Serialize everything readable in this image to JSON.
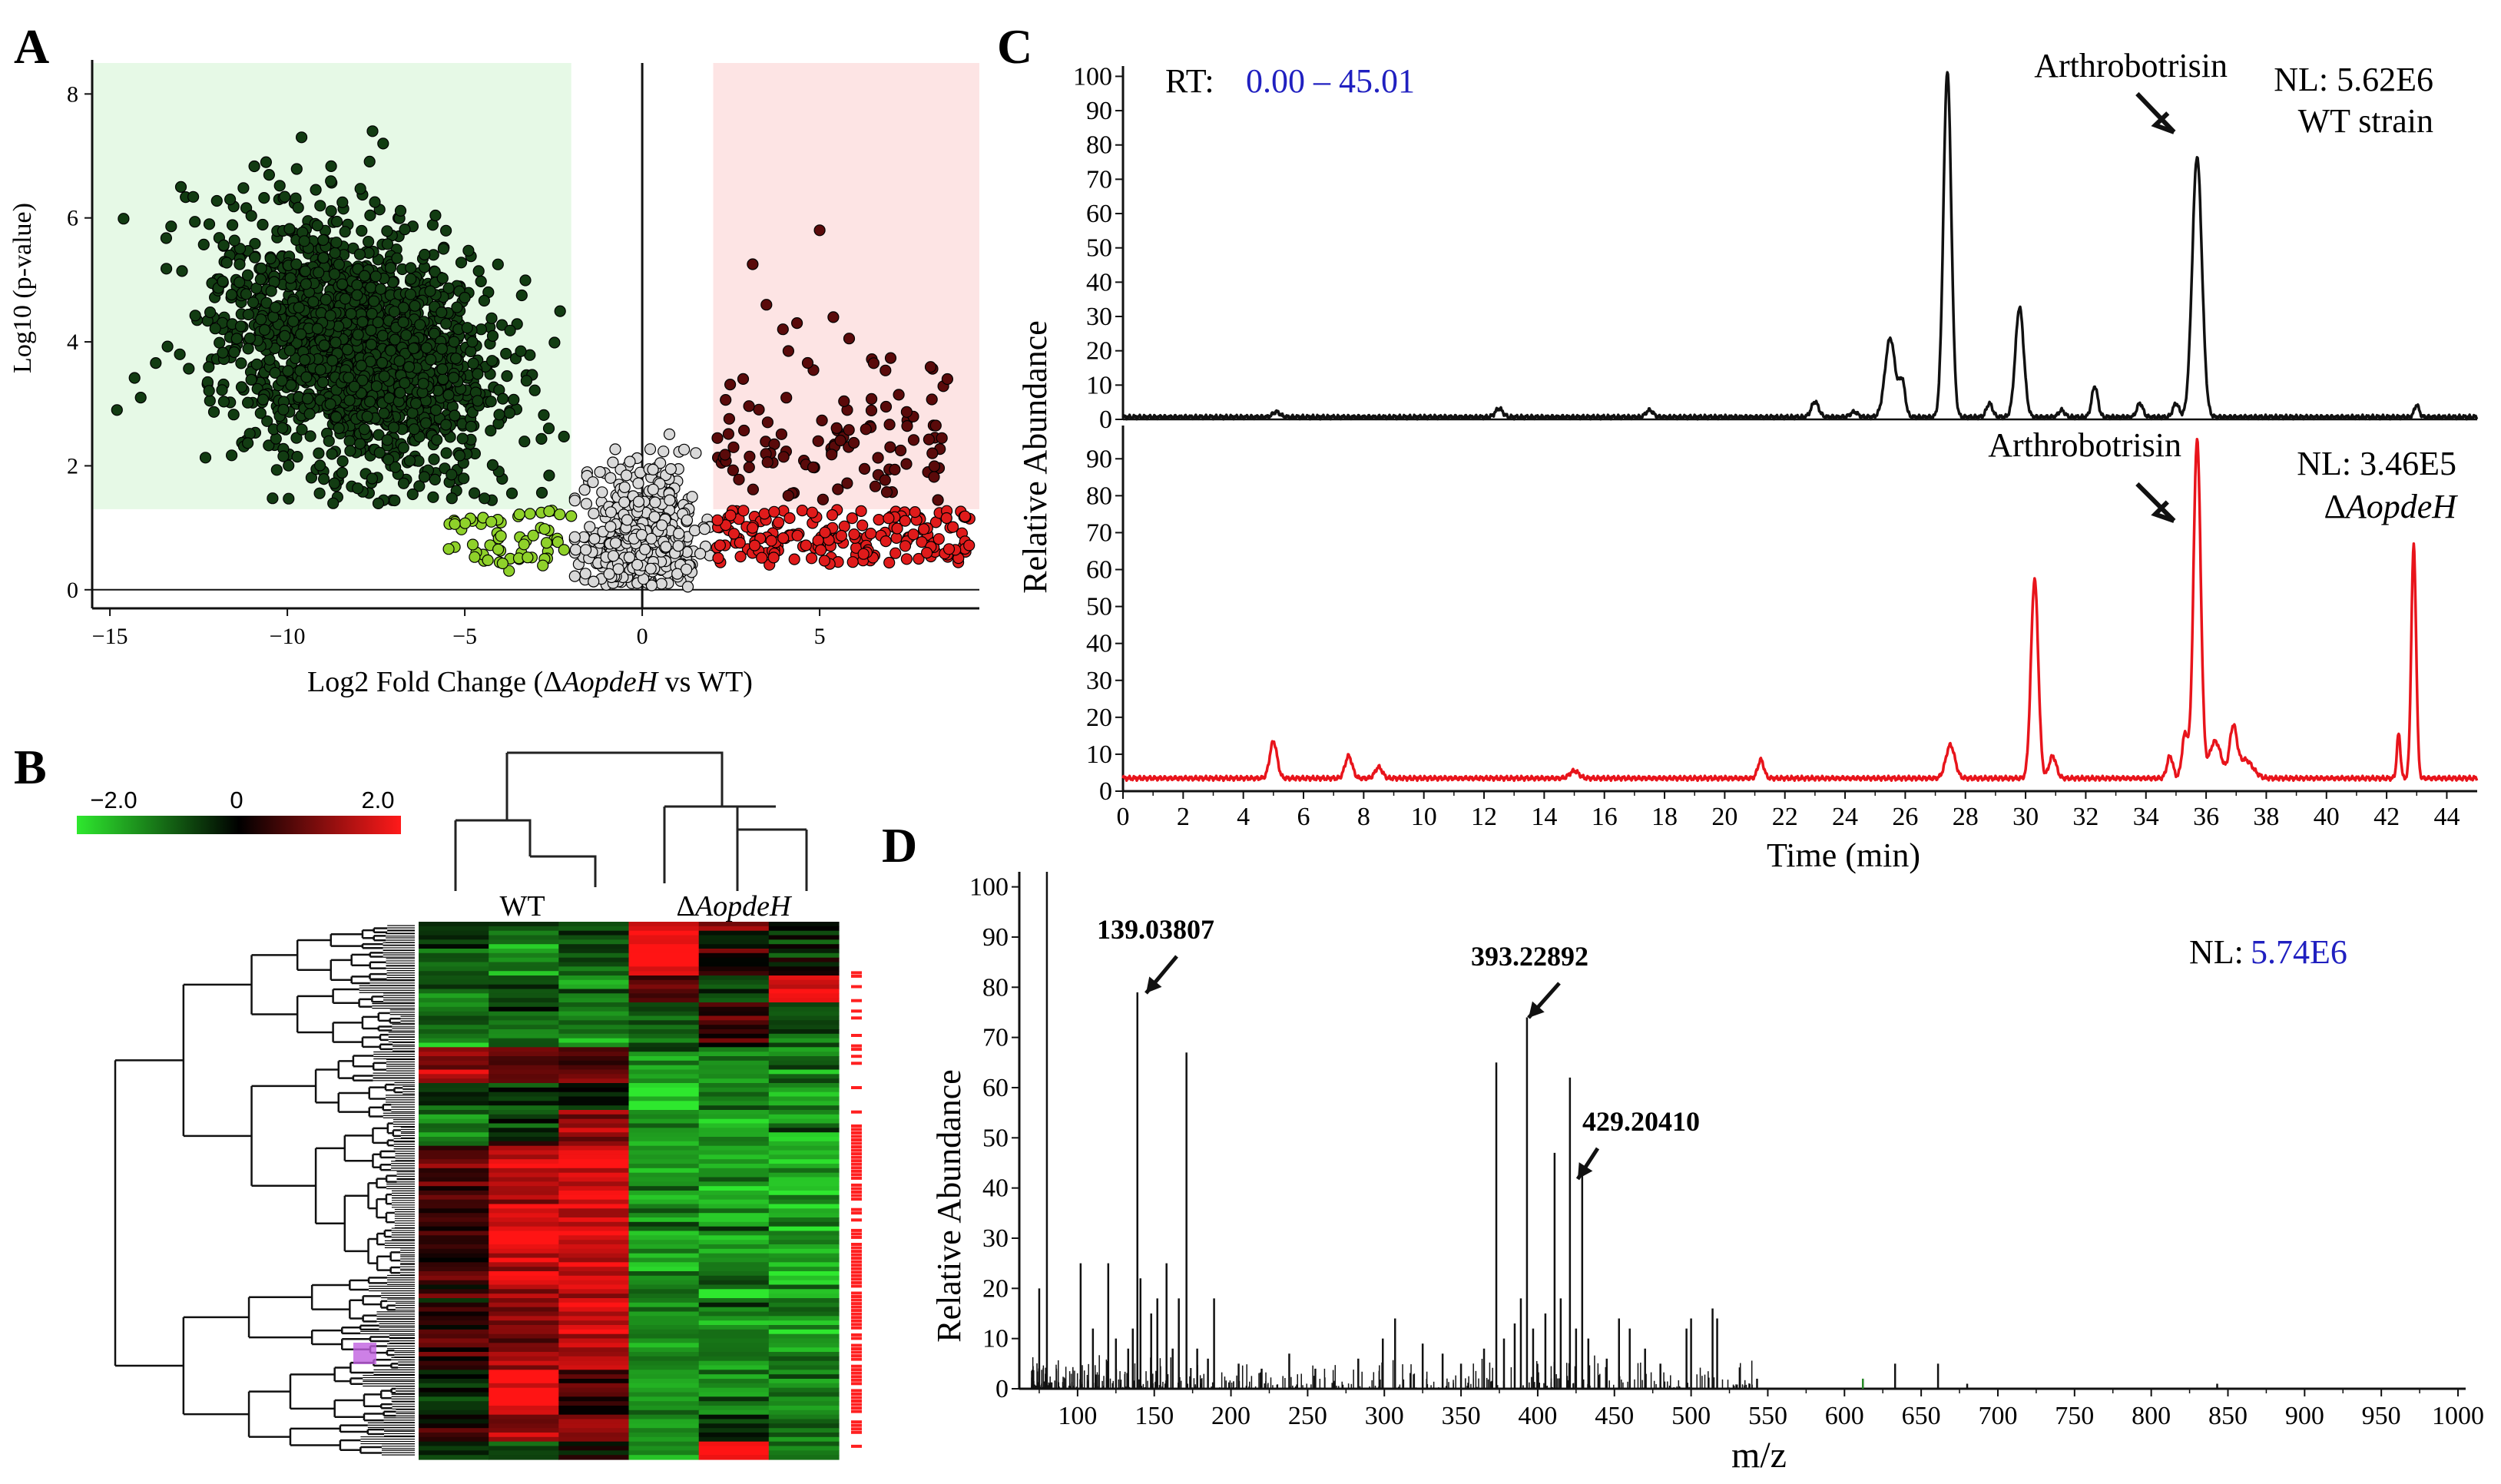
{
  "panel_labels": {
    "a": "A",
    "b": "B",
    "c": "C",
    "d": "D"
  },
  "chart_data": [
    {
      "id": "A",
      "type": "scatter",
      "title": "",
      "xlabel_prefix": "Log2 Fold Change (Δ",
      "xlabel_italic": "AopdeH",
      "xlabel_suffix": " vs WT)",
      "ylabel": "Log10 (p-value)",
      "xlim": [
        -15.5,
        9.5
      ],
      "ylim": [
        -0.3,
        8.5
      ],
      "x_ticks": [
        -15,
        -10,
        -5,
        0,
        5
      ],
      "y_ticks": [
        0,
        2,
        4,
        6,
        8
      ],
      "grid": false,
      "shaded_regions": [
        {
          "name": "down-regulated",
          "x": [
            -15.5,
            -2
          ],
          "y": [
            1.3,
            8.5
          ],
          "color": "#e6f9e6"
        },
        {
          "name": "up-regulated",
          "x": [
            2,
            9.5
          ],
          "y": [
            1.3,
            8.5
          ],
          "color": "#fde4e4"
        }
      ],
      "groups": [
        {
          "name": "significant-down",
          "color": "#123c12",
          "approx_count": 1800,
          "x_center": -8,
          "y_center": 3.8
        },
        {
          "name": "fold-down-not-significant",
          "color": "#8fd12a",
          "approx_count": 60
        },
        {
          "name": "not-changed",
          "color": "#d9d9d9",
          "approx_count": 600
        },
        {
          "name": "significant-up",
          "color": "#5a0a0a",
          "approx_count": 110
        },
        {
          "name": "fold-up-not-significant",
          "color": "#e01b1b",
          "approx_count": 180
        }
      ],
      "representative_points": [
        {
          "x": -14.8,
          "y": 2.9
        },
        {
          "x": -13.0,
          "y": 6.5
        },
        {
          "x": -12.2,
          "y": 5.9
        },
        {
          "x": -10.6,
          "y": 6.9
        },
        {
          "x": -9.6,
          "y": 7.3
        },
        {
          "x": -7.6,
          "y": 7.4
        },
        {
          "x": -7.3,
          "y": 7.2
        },
        {
          "x": -5.6,
          "y": 5.5
        },
        {
          "x": 3.5,
          "y": 4.6
        },
        {
          "x": 5.0,
          "y": 5.8
        },
        {
          "x": 8.6,
          "y": 3.4
        },
        {
          "x": 9.0,
          "y": 0.6
        }
      ]
    },
    {
      "id": "B",
      "type": "heatmap",
      "colorbar": {
        "min_label": "−2.0",
        "mid_label": "0",
        "max_label": "2.0",
        "colors": [
          "#2ee82e",
          "#000000",
          "#ff1a1a"
        ]
      },
      "column_groups": [
        {
          "label": "WT",
          "columns": 3
        },
        {
          "label_prefix": "Δ",
          "label_italic": "AopdeH",
          "columns": 3
        }
      ],
      "row_blocks": [
        {
          "rows": 2,
          "values": [
            -0.6,
            -0.6,
            -0.6,
            1.8,
            1.0,
            0.4
          ]
        },
        {
          "rows": 10,
          "values": [
            -0.8,
            -1.0,
            -0.7,
            2.0,
            0.2,
            -0.5
          ]
        },
        {
          "rows": 6,
          "values": [
            -1.0,
            -0.8,
            -1.0,
            0.6,
            -0.6,
            1.9
          ]
        },
        {
          "rows": 10,
          "values": [
            -0.9,
            -1.0,
            -1.0,
            -0.8,
            0.4,
            -0.5
          ]
        },
        {
          "rows": 8,
          "values": [
            1.2,
            0.8,
            0.5,
            -1.2,
            -1.0,
            -1.1
          ]
        },
        {
          "rows": 6,
          "values": [
            -0.5,
            -0.2,
            -0.4,
            -2.0,
            -0.9,
            -1.3
          ]
        },
        {
          "rows": 8,
          "values": [
            -1.0,
            -0.3,
            1.3,
            -1.3,
            -1.2,
            -1.3
          ]
        },
        {
          "rows": 30,
          "values": [
            0.5,
            1.6,
            1.8,
            -1.3,
            -1.3,
            -1.3
          ]
        },
        {
          "rows": 20,
          "values": [
            0.3,
            1.2,
            1.5,
            -1.2,
            -1.3,
            -1.3
          ]
        },
        {
          "rows": 10,
          "values": [
            -0.4,
            2.0,
            0.7,
            -1.2,
            -1.2,
            -1.2
          ]
        },
        {
          "rows": 6,
          "values": [
            0.4,
            1.0,
            1.2,
            -1.3,
            -0.4,
            -1.0
          ]
        },
        {
          "rows": 4,
          "values": [
            -0.6,
            -0.4,
            -0.5,
            -1.0,
            1.9,
            -1.2
          ]
        }
      ]
    },
    {
      "id": "C",
      "type": "line",
      "ylabel": "Relative Abundance",
      "xlabel": "Time (min)",
      "xlim": [
        0,
        45.01
      ],
      "x_ticks": [
        0,
        2,
        4,
        6,
        8,
        10,
        12,
        14,
        16,
        18,
        20,
        22,
        24,
        26,
        28,
        30,
        32,
        34,
        36,
        38,
        40,
        42,
        44
      ],
      "y_ticks_top": [
        0,
        10,
        20,
        30,
        40,
        50,
        60,
        70,
        80,
        90,
        100
      ],
      "y_ticks_bottom": [
        0,
        10,
        20,
        30,
        40,
        50,
        60,
        70,
        80,
        90
      ],
      "rt_label": "RT:",
      "rt_range": "0.00 – 45.01",
      "series": [
        {
          "name": "WT strain",
          "color": "#111111",
          "nl_label": "NL: 5.62E6",
          "strain_label": "WT strain",
          "annotation": "Arthrobotrisin",
          "annotation_time": 35.7,
          "baseline": 0.7,
          "peaks": [
            {
              "t": 5.1,
              "h": 1.5,
              "w": 0.12
            },
            {
              "t": 12.5,
              "h": 2.5,
              "w": 0.12
            },
            {
              "t": 17.5,
              "h": 2.0,
              "w": 0.12
            },
            {
              "t": 23.0,
              "h": 4.5,
              "w": 0.12
            },
            {
              "t": 24.3,
              "h": 1.5,
              "w": 0.12
            },
            {
              "t": 25.5,
              "h": 23.0,
              "w": 0.17
            },
            {
              "t": 25.9,
              "h": 10.0,
              "w": 0.1
            },
            {
              "t": 27.4,
              "h": 101.0,
              "w": 0.13
            },
            {
              "t": 28.8,
              "h": 4.0,
              "w": 0.1
            },
            {
              "t": 29.8,
              "h": 32.0,
              "w": 0.14
            },
            {
              "t": 31.2,
              "h": 2.0,
              "w": 0.1
            },
            {
              "t": 32.3,
              "h": 9.0,
              "w": 0.1
            },
            {
              "t": 33.8,
              "h": 4.0,
              "w": 0.1
            },
            {
              "t": 35.0,
              "h": 4.0,
              "w": 0.1
            },
            {
              "t": 35.7,
              "h": 76.0,
              "w": 0.16
            },
            {
              "t": 43.0,
              "h": 3.5,
              "w": 0.08
            }
          ]
        },
        {
          "name": "ΔAopdeH",
          "color": "#e8141b",
          "nl_label": "NL: 3.46E5",
          "strain_label_prefix": "Δ",
          "strain_label_italic": "AopdeH",
          "annotation": "Arthrobotrisin",
          "annotation_time": 35.7,
          "baseline": 3.5,
          "peaks": [
            {
              "t": 5.0,
              "h": 10.0,
              "w": 0.12
            },
            {
              "t": 7.5,
              "h": 6.0,
              "w": 0.12
            },
            {
              "t": 8.5,
              "h": 3.0,
              "w": 0.12
            },
            {
              "t": 15.0,
              "h": 2.0,
              "w": 0.15
            },
            {
              "t": 21.2,
              "h": 5.0,
              "w": 0.1
            },
            {
              "t": 27.5,
              "h": 9.0,
              "w": 0.15
            },
            {
              "t": 30.3,
              "h": 54.0,
              "w": 0.12
            },
            {
              "t": 30.9,
              "h": 6.0,
              "w": 0.12
            },
            {
              "t": 34.8,
              "h": 6.0,
              "w": 0.1
            },
            {
              "t": 35.3,
              "h": 12.0,
              "w": 0.1
            },
            {
              "t": 35.7,
              "h": 92.0,
              "w": 0.12
            },
            {
              "t": 36.3,
              "h": 10.0,
              "w": 0.2
            },
            {
              "t": 36.9,
              "h": 13.0,
              "w": 0.12
            },
            {
              "t": 37.3,
              "h": 5.0,
              "w": 0.25
            },
            {
              "t": 42.4,
              "h": 12.0,
              "w": 0.06
            },
            {
              "t": 42.9,
              "h": 63.0,
              "w": 0.08
            }
          ]
        }
      ]
    },
    {
      "id": "D",
      "type": "bar",
      "xlabel": "m/z",
      "ylabel": "Relative Abundance",
      "xlim": [
        62,
        1005
      ],
      "ylim": [
        0,
        103
      ],
      "x_ticks": [
        100,
        150,
        200,
        250,
        300,
        350,
        400,
        450,
        500,
        550,
        600,
        650,
        700,
        750,
        800,
        850,
        900,
        950,
        1000
      ],
      "y_ticks": [
        0,
        10,
        20,
        30,
        40,
        50,
        60,
        70,
        80,
        90,
        100
      ],
      "nl_prefix": "NL:",
      "nl_value": "5.74E6",
      "annotations": [
        {
          "label": "139.03807",
          "mz": 139.04,
          "value": 79
        },
        {
          "label": "393.22892",
          "mz": 393.23,
          "value": 74
        },
        {
          "label": "429.20410",
          "mz": 429.2,
          "value": 44
        }
      ],
      "peaks": [
        {
          "mz": 75,
          "v": 20
        },
        {
          "mz": 80,
          "v": 103
        },
        {
          "mz": 102,
          "v": 25
        },
        {
          "mz": 110,
          "v": 12
        },
        {
          "mz": 120,
          "v": 25
        },
        {
          "mz": 125,
          "v": 10
        },
        {
          "mz": 133,
          "v": 8
        },
        {
          "mz": 136,
          "v": 12
        },
        {
          "mz": 139,
          "v": 79
        },
        {
          "mz": 141,
          "v": 22
        },
        {
          "mz": 148,
          "v": 15
        },
        {
          "mz": 152,
          "v": 18
        },
        {
          "mz": 158,
          "v": 25
        },
        {
          "mz": 162,
          "v": 8
        },
        {
          "mz": 166,
          "v": 18
        },
        {
          "mz": 171,
          "v": 67
        },
        {
          "mz": 178,
          "v": 8
        },
        {
          "mz": 185,
          "v": 6
        },
        {
          "mz": 189,
          "v": 18
        },
        {
          "mz": 205,
          "v": 5
        },
        {
          "mz": 220,
          "v": 4
        },
        {
          "mz": 238,
          "v": 7
        },
        {
          "mz": 255,
          "v": 4
        },
        {
          "mz": 283,
          "v": 6
        },
        {
          "mz": 299,
          "v": 10
        },
        {
          "mz": 307,
          "v": 14
        },
        {
          "mz": 325,
          "v": 9
        },
        {
          "mz": 338,
          "v": 7
        },
        {
          "mz": 350,
          "v": 5
        },
        {
          "mz": 365,
          "v": 8
        },
        {
          "mz": 373,
          "v": 65
        },
        {
          "mz": 378,
          "v": 10
        },
        {
          "mz": 385,
          "v": 13
        },
        {
          "mz": 389,
          "v": 18
        },
        {
          "mz": 393,
          "v": 74
        },
        {
          "mz": 397,
          "v": 12
        },
        {
          "mz": 405,
          "v": 15
        },
        {
          "mz": 411,
          "v": 47
        },
        {
          "mz": 415,
          "v": 18
        },
        {
          "mz": 421,
          "v": 62
        },
        {
          "mz": 425,
          "v": 12
        },
        {
          "mz": 429,
          "v": 44
        },
        {
          "mz": 433,
          "v": 10
        },
        {
          "mz": 445,
          "v": 6
        },
        {
          "mz": 453,
          "v": 14
        },
        {
          "mz": 460,
          "v": 12
        },
        {
          "mz": 470,
          "v": 8
        },
        {
          "mz": 480,
          "v": 5
        },
        {
          "mz": 497,
          "v": 12
        },
        {
          "mz": 500,
          "v": 14
        },
        {
          "mz": 514,
          "v": 16
        },
        {
          "mz": 517,
          "v": 14
        },
        {
          "mz": 543,
          "v": 2
        },
        {
          "mz": 612,
          "v": 2
        },
        {
          "mz": 633,
          "v": 5
        },
        {
          "mz": 661,
          "v": 5
        },
        {
          "mz": 680,
          "v": 1
        },
        {
          "mz": 843,
          "v": 1
        }
      ]
    }
  ]
}
